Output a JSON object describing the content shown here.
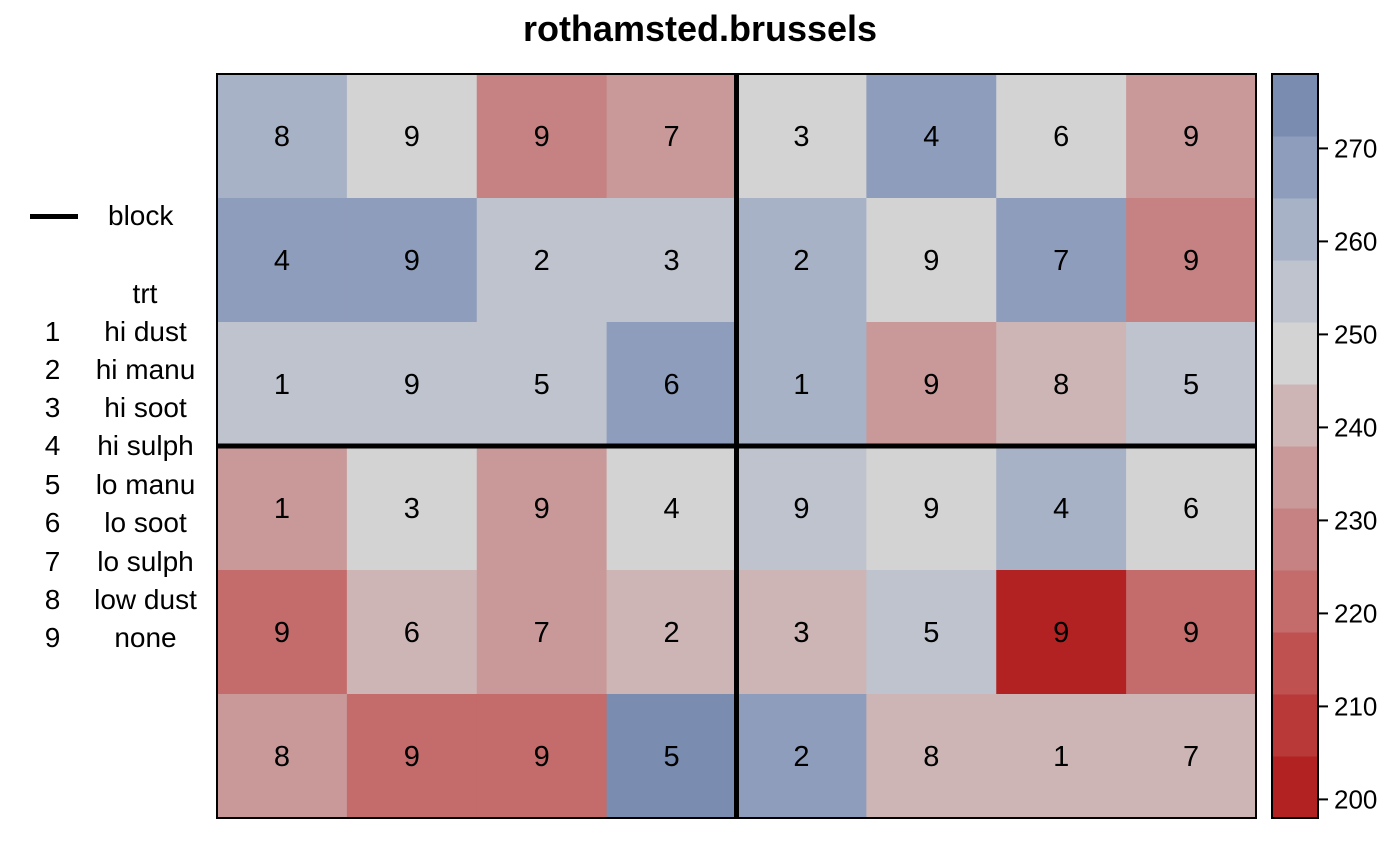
{
  "title": "rothamsted.brussels",
  "legend": {
    "block_label": "block",
    "trt_heading": "trt",
    "items": [
      {
        "code": "1",
        "label": "hi dust"
      },
      {
        "code": "2",
        "label": "hi manu"
      },
      {
        "code": "3",
        "label": "hi soot"
      },
      {
        "code": "4",
        "label": "hi sulph"
      },
      {
        "code": "5",
        "label": "lo manu"
      },
      {
        "code": "6",
        "label": "lo soot"
      },
      {
        "code": "7",
        "label": "lo sulph"
      },
      {
        "code": "8",
        "label": "low dust"
      },
      {
        "code": "9",
        "label": "none"
      }
    ]
  },
  "chart_data": {
    "type": "heatmap",
    "title": "rothamsted.brussels",
    "nrows": 6,
    "ncols": 8,
    "labels": [
      [
        8,
        9,
        9,
        7,
        3,
        4,
        6,
        9
      ],
      [
        4,
        9,
        2,
        3,
        2,
        9,
        7,
        9
      ],
      [
        1,
        9,
        5,
        6,
        1,
        9,
        8,
        5
      ],
      [
        1,
        3,
        9,
        4,
        9,
        9,
        4,
        6
      ],
      [
        9,
        6,
        7,
        2,
        3,
        5,
        9,
        9
      ],
      [
        8,
        9,
        9,
        5,
        2,
        8,
        1,
        7
      ]
    ],
    "values": [
      [
        262,
        248,
        228,
        235,
        248,
        266,
        248,
        235
      ],
      [
        266,
        266,
        256,
        256,
        262,
        248,
        266,
        228
      ],
      [
        256,
        256,
        256,
        266,
        262,
        235,
        242,
        256
      ],
      [
        235,
        248,
        235,
        248,
        256,
        248,
        262,
        248
      ],
      [
        218,
        242,
        235,
        242,
        242,
        256,
        203,
        222
      ],
      [
        235,
        218,
        218,
        273,
        266,
        242,
        242,
        242
      ]
    ],
    "block_boundaries": {
      "row_after": 3,
      "col_after": 4
    },
    "colorbar": {
      "range": [
        198,
        278
      ],
      "ticks": [
        200,
        210,
        220,
        230,
        240,
        250,
        260,
        270
      ],
      "colors": [
        "#B22222",
        "#B93838",
        "#BF5151",
        "#C46B6B",
        "#C68282",
        "#C99999",
        "#CEB5B5",
        "#D3D3D3",
        "#BEC3CE",
        "#A7B2C6",
        "#8F9DBC",
        "#7A8CB0"
      ]
    },
    "legend_placement": "left",
    "grid": false
  }
}
